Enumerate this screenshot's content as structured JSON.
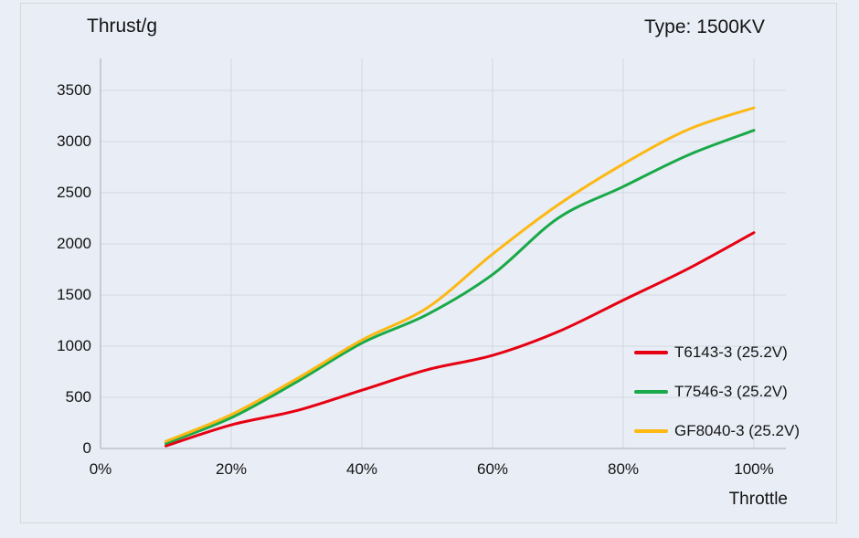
{
  "header": {
    "title_left": "Thrust/g",
    "title_right": "Type: 1500KV"
  },
  "colors": {
    "background": "#eaeef6",
    "panel_border": "#d8d8d8",
    "grid": "#d3d7df",
    "axis": "#b4bac3",
    "text": "#141414",
    "series_red": "#e60012",
    "series_green": "#19a949",
    "series_yellow": "#fcb813"
  },
  "chart_data": {
    "type": "line",
    "title": "Thrust/g",
    "subtitle": "Type: 1500KV",
    "xlabel": "Throttle",
    "ylabel": "Thrust/g",
    "x_unit": "% throttle",
    "xlim": [
      0,
      105
    ],
    "ylim": [
      0,
      3800
    ],
    "grid": true,
    "legend_position": "inside-bottom-right",
    "x_ticks": [
      "0%",
      "20%",
      "40%",
      "60%",
      "80%",
      "100%"
    ],
    "x_tick_values": [
      0,
      20,
      40,
      60,
      80,
      100
    ],
    "y_ticks": [
      "0",
      "500",
      "1000",
      "1500",
      "2000",
      "2500",
      "3000",
      "3500"
    ],
    "y_tick_values": [
      0,
      500,
      1000,
      1500,
      2000,
      2500,
      3000,
      3500
    ],
    "x": [
      10,
      20,
      30,
      40,
      50,
      60,
      70,
      80,
      90,
      100
    ],
    "series": [
      {
        "name": "T6143-3",
        "label": "T6143-3 (25.2V)",
        "color": "#e60012",
        "values": [
          25,
          230,
          370,
          570,
          770,
          910,
          1140,
          1450,
          1760,
          2110
        ]
      },
      {
        "name": "T7546-3",
        "label": "T7546-3 (25.2V)",
        "color": "#19a949",
        "values": [
          50,
          300,
          650,
          1030,
          1310,
          1700,
          2250,
          2560,
          2870,
          3110
        ]
      },
      {
        "name": "GF8040-3",
        "label": "GF8040-3 (25.2V)",
        "color": "#fcb813",
        "values": [
          70,
          330,
          680,
          1060,
          1375,
          1900,
          2380,
          2780,
          3120,
          3330
        ]
      }
    ]
  }
}
